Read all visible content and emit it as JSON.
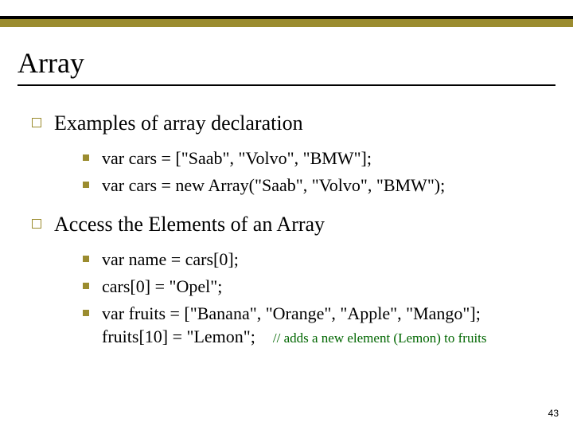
{
  "title": "Array",
  "sections": [
    {
      "heading": "Examples of array declaration",
      "items": [
        {
          "code": "var cars = [\"Saab\", \"Volvo\", \"BMW\"];"
        },
        {
          "code": "var cars = new Array(\"Saab\", \"Volvo\", \"BMW\");"
        }
      ]
    },
    {
      "heading": "Access the Elements of an Array",
      "items": [
        {
          "code": "var name = cars[0];"
        },
        {
          "code": "cars[0] = \"Opel\";"
        },
        {
          "code": "var fruits = [\"Banana\", \"Orange\", \"Apple\", \"Mango\"];",
          "extra": "fruits[10] = \"Lemon\";",
          "comment": "// adds a new element (Lemon) to fruits"
        }
      ]
    }
  ],
  "page_number": "43",
  "colors": {
    "accent": "#9b8c2f",
    "comment": "#006600",
    "text": "#000000",
    "bg": "#ffffff"
  }
}
